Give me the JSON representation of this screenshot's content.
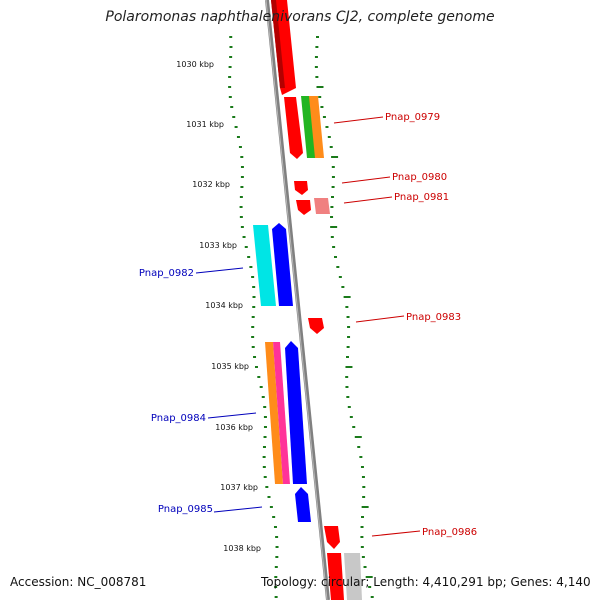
{
  "title": "Polaromonas naphthalenivorans CJ2, complete genome",
  "footer": {
    "accession": "Accession: NC_008781",
    "summary": "Topology: circular; Length: 4,410,291 bp; Genes: 4,140"
  },
  "colors": {
    "forward_label": "#cc0000",
    "reverse_label": "#0000bb",
    "backbone": "#808080",
    "gc_skew": "#1a7a1a"
  },
  "scale": {
    "unit": "kbp",
    "ticks": [
      "1030 kbp",
      "1031 kbp",
      "1032 kbp",
      "1033 kbp",
      "1034 kbp",
      "1035 kbp",
      "1036 kbp",
      "1037 kbp",
      "1038 kbp"
    ]
  },
  "genes": {
    "labeled": [
      {
        "name": "Pnap_0979",
        "strand": "forward"
      },
      {
        "name": "Pnap_0980",
        "strand": "forward"
      },
      {
        "name": "Pnap_0981",
        "strand": "forward"
      },
      {
        "name": "Pnap_0982",
        "strand": "reverse"
      },
      {
        "name": "Pnap_0983",
        "strand": "forward"
      },
      {
        "name": "Pnap_0984",
        "strand": "reverse"
      },
      {
        "name": "Pnap_0985",
        "strand": "reverse"
      },
      {
        "name": "Pnap_0986",
        "strand": "forward"
      }
    ]
  }
}
